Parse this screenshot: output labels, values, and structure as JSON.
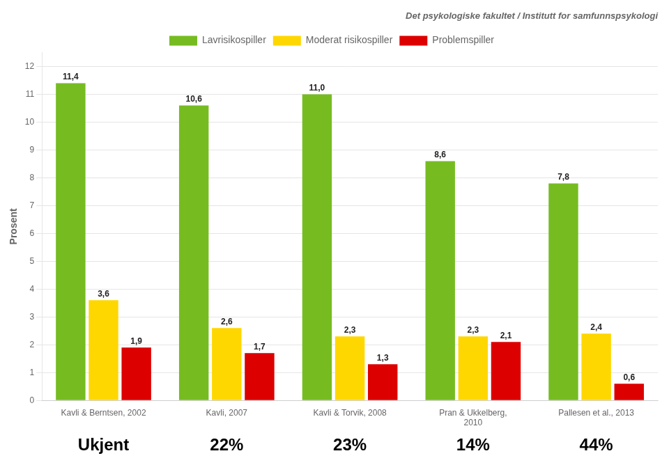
{
  "chart_data": {
    "type": "bar",
    "title": "Det psykologiske fakultet / Institutt for samfunnspsykologi",
    "ylabel": "Prosent",
    "categories": [
      "Kavli & Berntsen, 2002",
      "Kavli, 2007",
      "Kavli & Torvik, 2008",
      "Pran & Ukkelberg,\n2010",
      "Pallesen et al., 2013"
    ],
    "series": [
      {
        "name": "Lavrisikospiller",
        "color": "#76BC21",
        "values": [
          11.4,
          10.6,
          11.0,
          8.6,
          7.8
        ],
        "value_labels": [
          "11,4",
          "10,6",
          "11,0",
          "8,6",
          "7,8"
        ]
      },
      {
        "name": "Moderat risikospiller",
        "color": "#FFD700",
        "values": [
          3.6,
          2.6,
          2.3,
          2.3,
          2.4
        ],
        "value_labels": [
          "3,6",
          "2,6",
          "2,3",
          "2,3",
          "2,4"
        ]
      },
      {
        "name": "Problemspiller",
        "color": "#DD0000",
        "values": [
          1.9,
          1.7,
          1.3,
          2.1,
          0.6
        ],
        "value_labels": [
          "1,9",
          "1,7",
          "1,3",
          "2,1",
          "0,6"
        ]
      }
    ],
    "annotations": [
      {
        "x": "Kavli & Berntsen, 2002",
        "text": "Ukjent"
      },
      {
        "x": "Kavli, 2007",
        "text": "22%"
      },
      {
        "x": "Kavli & Torvik, 2008",
        "text": "23%"
      },
      {
        "x": "Pran & Ukkelberg,\n2010",
        "text": "14%"
      },
      {
        "x": "Pallesen et al., 2013",
        "text": "44%"
      }
    ],
    "ylim": [
      0,
      12.5
    ],
    "yticks": [
      0,
      1,
      2,
      3,
      4,
      5,
      6,
      7,
      8,
      9,
      10,
      11,
      12
    ],
    "grid": "y",
    "legend": "top",
    "data_labels": true
  }
}
